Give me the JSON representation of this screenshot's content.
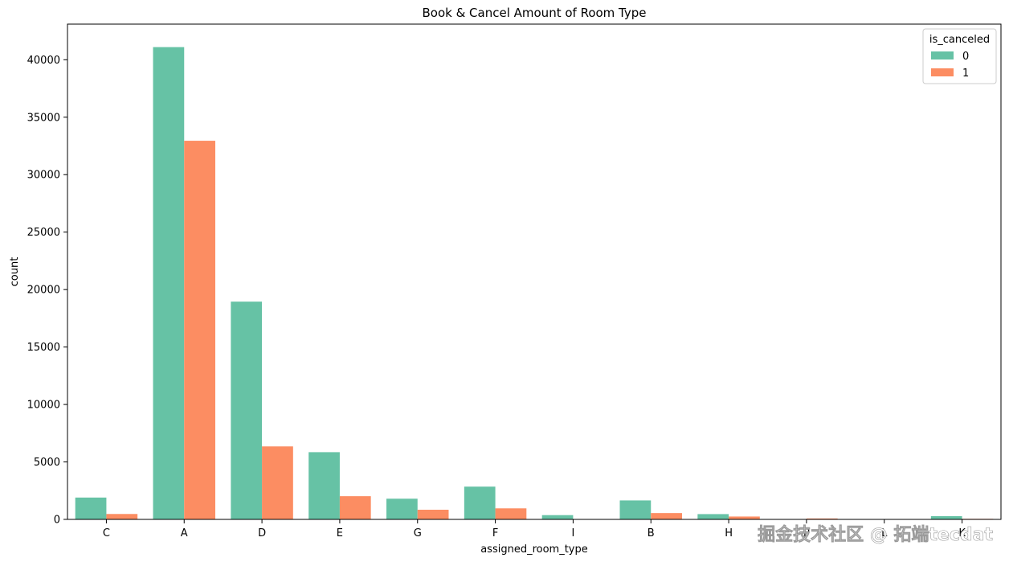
{
  "chart_data": {
    "type": "bar",
    "title": "Book & Cancel Amount of Room Type",
    "xlabel": "assigned_room_type",
    "ylabel": "count",
    "categories": [
      "C",
      "A",
      "D",
      "E",
      "G",
      "F",
      "I",
      "B",
      "H",
      "P",
      "L",
      "K"
    ],
    "series": [
      {
        "name": "0",
        "color": "#66c2a5",
        "values": [
          1900,
          41100,
          18950,
          5850,
          1800,
          2850,
          370,
          1650,
          460,
          0,
          1,
          280
        ]
      },
      {
        "name": "1",
        "color": "#fc8d62",
        "values": [
          470,
          32950,
          6350,
          2020,
          840,
          960,
          0,
          550,
          250,
          80,
          0,
          50
        ]
      }
    ],
    "ylim": [
      0,
      43100
    ],
    "yticks": [
      0,
      5000,
      10000,
      15000,
      20000,
      25000,
      30000,
      35000,
      40000
    ],
    "legend": {
      "title": "is_canceled",
      "position": "top-right"
    },
    "grid": false
  },
  "watermark": "掘金技术社区 @ 拓端tecdat"
}
